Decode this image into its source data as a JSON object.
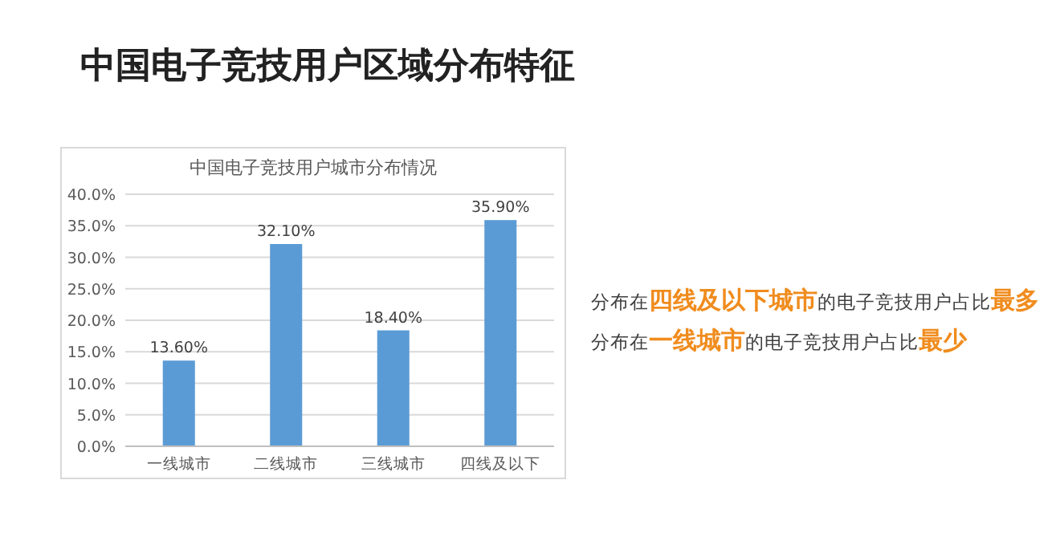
{
  "chart_data": {
    "type": "bar",
    "title": "中国电子竞技用户区域分布特征",
    "subtitle": "中国电子竞技用户城市分布情况",
    "categories": [
      "一线城市",
      "二线城市",
      "三线城市",
      "四线及以下"
    ],
    "values": [
      13.6,
      32.1,
      18.4,
      35.9
    ],
    "value_labels": [
      "13.60%",
      "32.10%",
      "18.40%",
      "35.90%"
    ],
    "color": "#5b9bd5",
    "ylim": [
      0,
      40
    ],
    "yticks": [
      {
        "value": 0,
        "label": "0.0%"
      },
      {
        "value": 5,
        "label": "5.0%"
      },
      {
        "value": 10,
        "label": "10.0%"
      },
      {
        "value": 15,
        "label": "15.0%"
      },
      {
        "value": 20,
        "label": "20.0%"
      },
      {
        "value": 25,
        "label": "25.0%"
      },
      {
        "value": 30,
        "label": "30.0%"
      },
      {
        "value": 35,
        "label": "35.0%"
      },
      {
        "value": 40,
        "label": "40.0%"
      }
    ],
    "grid": "y",
    "annotations": [
      "分布在**四线及以下城市**的电子竞技用户占比**最多**",
      "分布在**一线城市**的电子竞技用户占比**最少**"
    ]
  }
}
